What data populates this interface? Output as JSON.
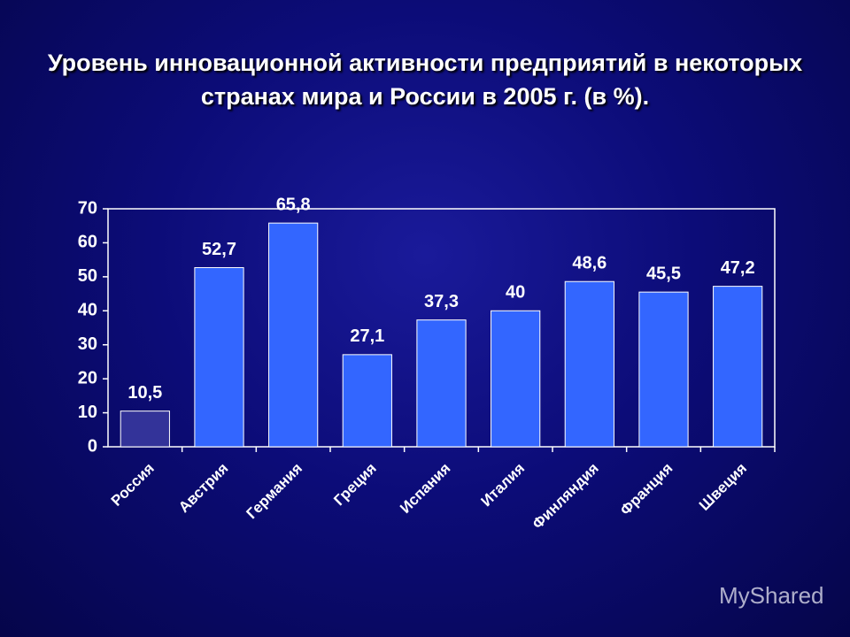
{
  "chart_data": {
    "type": "bar",
    "title": "Уровень инновационной активности предприятий в некоторых странах мира и России в 2005 г. (в %).",
    "categories": [
      "Россия",
      "Австрия",
      "Германия",
      "Греция",
      "Испания",
      "Италия",
      "Финляндия",
      "Франция",
      "Швеция"
    ],
    "values": [
      10.5,
      52.7,
      65.8,
      27.1,
      37.3,
      40,
      48.6,
      45.5,
      47.2
    ],
    "value_labels": [
      "10,5",
      "52,7",
      "65,8",
      "27,1",
      "37,3",
      "40",
      "48,6",
      "45,5",
      "47,2"
    ],
    "colors": [
      "#333399",
      "#3366ff",
      "#3366ff",
      "#3366ff",
      "#3366ff",
      "#3366ff",
      "#3366ff",
      "#3366ff",
      "#3366ff"
    ],
    "ylim": [
      0,
      70
    ],
    "yticks": [
      0,
      10,
      20,
      30,
      40,
      50,
      60,
      70
    ],
    "grid": false,
    "watermark": "MyShared"
  }
}
